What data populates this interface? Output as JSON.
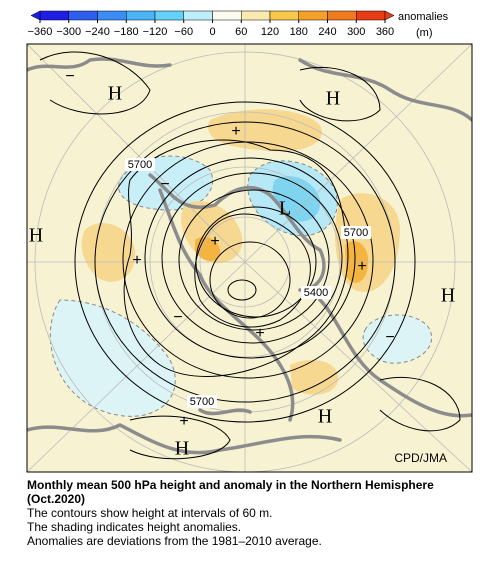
{
  "colorbar": {
    "unit_label": "anomalies",
    "unit": "(m)",
    "ticks": [
      {
        "value": -360,
        "label": "−360"
      },
      {
        "value": -300,
        "label": "−300"
      },
      {
        "value": -240,
        "label": "−240"
      },
      {
        "value": -180,
        "label": "−180"
      },
      {
        "value": -120,
        "label": "−120"
      },
      {
        "value": -60,
        "label": "−60"
      },
      0,
      60,
      120,
      180,
      240,
      300,
      360
    ],
    "colors": [
      "#1e1ee6",
      "#2e5ef0",
      "#3c8cf5",
      "#4ab4f8",
      "#64d2f8",
      "#bdeefa",
      "#fbfbf0",
      "#faeab0",
      "#f8c84a",
      "#f5a028",
      "#f07a1e",
      "#e83c14"
    ]
  },
  "map": {
    "labels": {
      "h1": "H",
      "h2": "H",
      "h3": "H",
      "h4": "H",
      "h5": "H",
      "h6": "H",
      "l1": "L",
      "c1": "5700",
      "c2": "5700",
      "c3": "5400",
      "c4": "5700",
      "p1": "+",
      "p2": "+",
      "p3": "+",
      "p4": "+",
      "p5": "+",
      "p6": "+",
      "m1": "−",
      "m2": "−",
      "m3": "−",
      "m4": "−"
    },
    "credit": "CPD/JMA"
  },
  "caption": {
    "title": "Monthly mean 500 hPa height and anomaly in the Northern Hemisphere (Oct.2020)",
    "lines": [
      "The contours show height at intervals of 60 m.",
      "The shading indicates height anomalies.",
      "Anomalies are deviations from the 1981–2010 average."
    ]
  }
}
